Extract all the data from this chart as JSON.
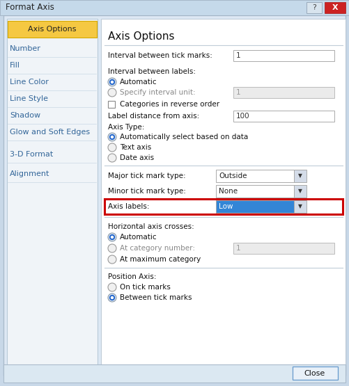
{
  "title": "Format Axis",
  "outer_bg": "#c8d8e8",
  "dialog_bg": "#f0f4f8",
  "content_bg": "#ffffff",
  "sidebar_bg": "#f8f9fb",
  "sidebar_selected_bg": "#f5c842",
  "sidebar_selected_border": "#d4a800",
  "sidebar_items": [
    "Axis Options",
    "Number",
    "Fill",
    "Line Color",
    "Line Style",
    "Shadow",
    "Glow and Soft Edges",
    "3-D Format",
    "Alignment"
  ],
  "sidebar_text_color": "#336699",
  "main_title": "Axis Options",
  "close_button": "Close",
  "red_highlight": "#cc0000",
  "dropdown_blue": "#3385d6",
  "title_bar_bg": "#c5d9ea",
  "bottom_bar_bg": "#dbe8f2",
  "font_size_label": 7.5,
  "font_size_title": 11,
  "font_size_sidebar": 8.0
}
